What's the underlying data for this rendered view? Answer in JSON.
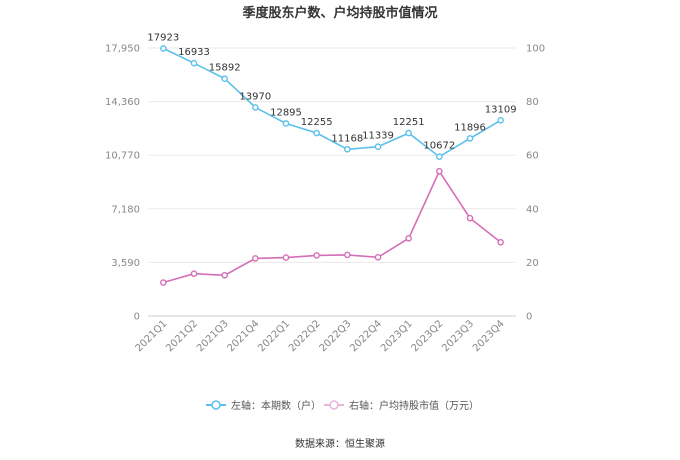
{
  "chart_data": {
    "type": "line",
    "title": "季度股东户数、户均持股市值情况",
    "categories": [
      "2021Q1",
      "2021Q2",
      "2021Q3",
      "2021Q4",
      "2022Q1",
      "2022Q2",
      "2022Q3",
      "2022Q4",
      "2023Q1",
      "2023Q2",
      "2023Q3",
      "2023Q4"
    ],
    "left_axis": {
      "ticks": [
        "0",
        "3,590",
        "7,180",
        "10,770",
        "14,360",
        "17,950"
      ],
      "ylim": [
        0,
        17950
      ]
    },
    "right_axis": {
      "ticks": [
        "0",
        "20",
        "40",
        "60",
        "80",
        "100"
      ],
      "ylim": [
        0,
        100
      ]
    },
    "grid": true,
    "legend_position": "bottom",
    "series": [
      {
        "name": "左轴：本期数（户）",
        "axis": "left",
        "color": "#5bc0eb",
        "values": [
          17923,
          16933,
          15892,
          13970,
          12895,
          12255,
          11168,
          11339,
          12251,
          10672,
          11896,
          13109
        ],
        "labels": [
          "17923",
          "16933",
          "15892",
          "13970",
          "12895",
          "12255",
          "11168",
          "11339",
          "12251",
          "10672",
          "11896",
          "13109"
        ]
      },
      {
        "name": "右轴：户均持股市值（万元）",
        "axis": "right",
        "color": "#d46fb7",
        "values": [
          12.5,
          15.8,
          15.2,
          21.5,
          21.8,
          22.6,
          22.8,
          21.9,
          29.0,
          54.0,
          36.5,
          27.5
        ]
      }
    ],
    "source": "数据来源：恒生聚源"
  }
}
